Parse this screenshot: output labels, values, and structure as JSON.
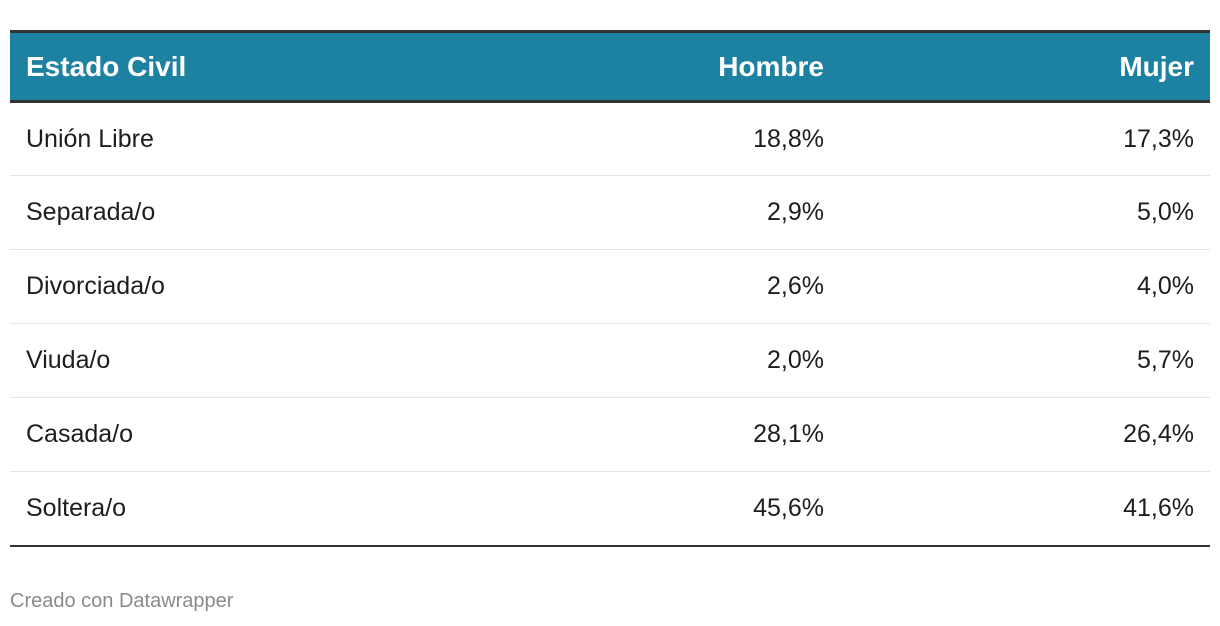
{
  "colors": {
    "header_bg": "#1d81a2",
    "header_text": "#ffffff",
    "border_dark": "#333333",
    "row_divider": "#e4e4e4",
    "credit_text": "#8a8a8a"
  },
  "chart_data": {
    "type": "table",
    "columns": [
      "Estado Civil",
      "Hombre",
      "Mujer"
    ],
    "rows": [
      [
        "Unión Libre",
        "18,8%",
        "17,3%"
      ],
      [
        "Separada/o",
        "2,9%",
        "5,0%"
      ],
      [
        "Divorciada/o",
        "2,6%",
        "4,0%"
      ],
      [
        "Viuda/o",
        "2,0%",
        "5,7%"
      ],
      [
        "Casada/o",
        "28,1%",
        "26,4%"
      ],
      [
        "Soltera/o",
        "45,6%",
        "41,6%"
      ]
    ]
  },
  "footer": {
    "credit": "Creado con Datawrapper"
  }
}
